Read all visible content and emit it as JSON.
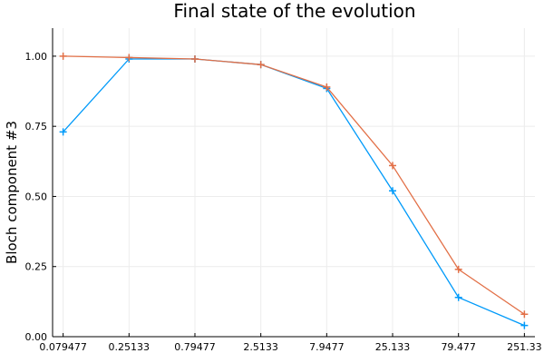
{
  "chart_data": {
    "type": "line",
    "title": "Final state of the evolution",
    "xlabel": "",
    "ylabel": "Bloch component #3",
    "x_scale": "log",
    "x": [
      0.079477,
      0.25133,
      0.79477,
      2.5133,
      7.9477,
      25.133,
      79.477,
      251.33
    ],
    "x_tick_labels": [
      "0.079477",
      "0.25133",
      "0.79477",
      "2.5133",
      "7.9477",
      "25.133",
      "79.477",
      "251.33"
    ],
    "ylim": [
      0,
      1.1
    ],
    "y_ticks": [
      0.0,
      0.25,
      0.5,
      0.75,
      1.0
    ],
    "y_tick_labels": [
      "0.00",
      "0.25",
      "0.50",
      "0.75",
      "1.00"
    ],
    "grid": true,
    "legend": "none",
    "marker": "+",
    "series": [
      {
        "color": "#009af9",
        "values": [
          0.73,
          0.99,
          0.99,
          0.97,
          0.885,
          0.52,
          0.14,
          0.04
        ]
      },
      {
        "color": "#e26f46",
        "values": [
          1.0,
          0.995,
          0.99,
          0.97,
          0.89,
          0.61,
          0.24,
          0.08
        ]
      }
    ]
  }
}
